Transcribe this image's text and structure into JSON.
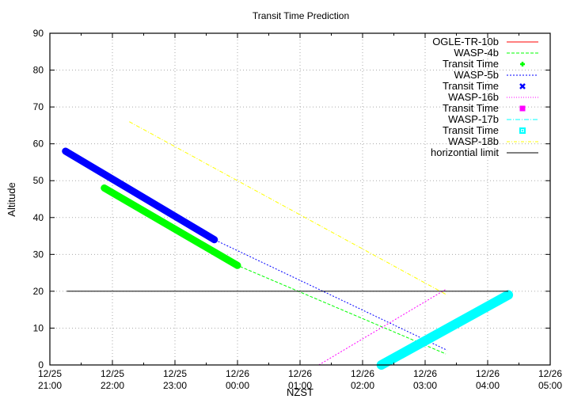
{
  "chart_data": {
    "type": "line",
    "title": "Transit Time Prediction",
    "xlabel": "NZST",
    "ylabel": "Altitude",
    "xlim": [
      "12/25 21:00",
      "12/26 05:00"
    ],
    "ylim": [
      0,
      90
    ],
    "grid": true,
    "legend_position": "top-right (inside)",
    "x_ticks": [
      {
        "date": "12/25",
        "time": "21:00"
      },
      {
        "date": "12/25",
        "time": "22:00"
      },
      {
        "date": "12/25",
        "time": "23:00"
      },
      {
        "date": "12/26",
        "time": "00:00"
      },
      {
        "date": "12/26",
        "time": "01:00"
      },
      {
        "date": "12/26",
        "time": "02:00"
      },
      {
        "date": "12/26",
        "time": "03:00"
      },
      {
        "date": "12/26",
        "time": "04:00"
      },
      {
        "date": "12/26",
        "time": "05:00"
      }
    ],
    "y_ticks": [
      "0",
      "10",
      "20",
      "30",
      "40",
      "50",
      "60",
      "70",
      "80",
      "90"
    ],
    "x_units": "hours after 12/25 21:00",
    "series": [
      {
        "name": "OGLE-TR-10b",
        "style": "line",
        "color": "#ff0000",
        "points": []
      },
      {
        "name": "WASP-4b",
        "style": "dashed",
        "color": "#00ff00",
        "points": [
          [
            0.87,
            48
          ],
          [
            3.0,
            27
          ],
          [
            6.33,
            3
          ]
        ]
      },
      {
        "name": "Transit Time",
        "parent": "WASP-4b",
        "style": "points-plus",
        "color": "#00ff00",
        "points": [
          [
            0.87,
            48
          ],
          [
            3.0,
            27
          ]
        ]
      },
      {
        "name": "WASP-5b",
        "style": "dotted",
        "color": "#0000ff",
        "points": [
          [
            0.25,
            58
          ],
          [
            2.63,
            34
          ],
          [
            6.35,
            4
          ]
        ]
      },
      {
        "name": "Transit Time",
        "parent": "WASP-5b",
        "style": "points-cross",
        "color": "#0000ff",
        "points": [
          [
            0.25,
            58
          ],
          [
            2.63,
            34
          ]
        ]
      },
      {
        "name": "WASP-16b",
        "style": "dotted",
        "color": "#ff00ff",
        "points": [
          [
            4.3,
            0
          ],
          [
            6.33,
            20.5
          ]
        ]
      },
      {
        "name": "Transit Time",
        "parent": "WASP-16b",
        "style": "points-filled-box",
        "color": "#ff00ff",
        "points": []
      },
      {
        "name": "WASP-17b",
        "style": "dash-dot",
        "color": "#00ffff",
        "points": [
          [
            5.3,
            0
          ],
          [
            7.33,
            19
          ]
        ]
      },
      {
        "name": "Transit Time",
        "parent": "WASP-17b",
        "style": "points-box",
        "color": "#00ffff",
        "points": [
          [
            5.3,
            0
          ],
          [
            7.33,
            19
          ]
        ]
      },
      {
        "name": "WASP-18b",
        "style": "dash-dot",
        "color": "#ffff00",
        "points": [
          [
            1.27,
            66
          ],
          [
            6.35,
            19
          ]
        ]
      },
      {
        "name": "horizontial limit",
        "style": "line",
        "color": "#000000",
        "points": [
          [
            0.27,
            20
          ],
          [
            7.33,
            20
          ]
        ]
      }
    ]
  },
  "legend": [
    {
      "label": "OGLE-TR-10b",
      "color": "#ff0000",
      "kind": "line",
      "dash": ""
    },
    {
      "label": "WASP-4b",
      "color": "#00ff00",
      "kind": "line",
      "dash": "4,2"
    },
    {
      "label": "Transit Time",
      "color": "#00ff00",
      "kind": "plus",
      "dash": ""
    },
    {
      "label": "WASP-5b",
      "color": "#0000ff",
      "kind": "line",
      "dash": "2,2"
    },
    {
      "label": "Transit Time",
      "color": "#0000ff",
      "kind": "cross",
      "dash": ""
    },
    {
      "label": "WASP-16b",
      "color": "#ff00ff",
      "kind": "line",
      "dash": "1,2"
    },
    {
      "label": "Transit Time",
      "color": "#ff00ff",
      "kind": "fbox",
      "dash": ""
    },
    {
      "label": "WASP-17b",
      "color": "#00ffff",
      "kind": "line",
      "dash": "6,2,1,2"
    },
    {
      "label": "Transit Time",
      "color": "#00ffff",
      "kind": "box",
      "dash": ""
    },
    {
      "label": "WASP-18b",
      "color": "#ffff00",
      "kind": "line",
      "dash": "4,2,1,2"
    },
    {
      "label": "horizontial limit",
      "color": "#000000",
      "kind": "line",
      "dash": ""
    }
  ]
}
